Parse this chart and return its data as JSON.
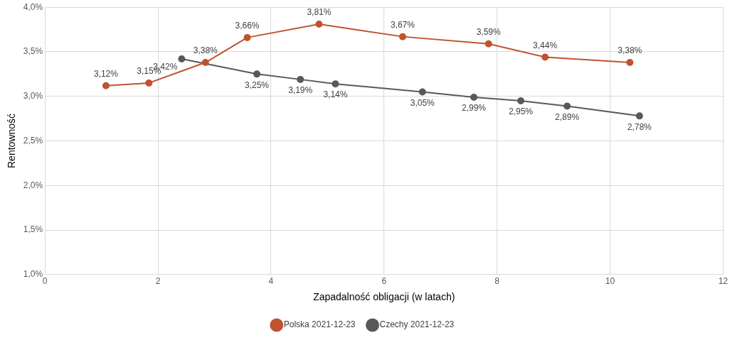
{
  "chart_data": {
    "type": "line",
    "xlabel": "Zapadalność obligacji (w latach)",
    "ylabel": "Rentowność",
    "xlim": [
      0,
      12
    ],
    "xticks": [
      0,
      2,
      4,
      6,
      8,
      10,
      12
    ],
    "ylim": [
      1,
      4
    ],
    "yticks": [
      {
        "value": 1,
        "label": "1,0%"
      },
      {
        "value": 1.5,
        "label": "1,5%"
      },
      {
        "value": 2,
        "label": "2,0%"
      },
      {
        "value": 2.5,
        "label": "2,5%"
      },
      {
        "value": 3,
        "label": "3,0%"
      },
      {
        "value": 3.5,
        "label": "3,5%"
      },
      {
        "value": 4,
        "label": "4,0%"
      }
    ],
    "grid": true,
    "legend": "bottom",
    "marker": "circle",
    "line_style": "solid",
    "series": [
      {
        "name": "Polska 2021-12-23",
        "color": "#c0532f",
        "x": [
          1.08,
          1.84,
          2.84,
          3.58,
          4.85,
          6.33,
          7.85,
          8.85,
          10.35
        ],
        "values": [
          3.12,
          3.15,
          3.38,
          3.66,
          3.81,
          3.67,
          3.59,
          3.44,
          3.38
        ],
        "value_labels": [
          "3,12%",
          "3,15%",
          "3,38%",
          "3,66%",
          "3,81%",
          "3,67%",
          "3,59%",
          "3,44%",
          "3,38%"
        ]
      },
      {
        "name": "Czechy 2021-12-23",
        "color": "#595959",
        "x": [
          2.42,
          3.75,
          4.52,
          5.14,
          6.68,
          7.59,
          8.42,
          9.24,
          10.52
        ],
        "values": [
          3.42,
          3.25,
          3.19,
          3.14,
          3.05,
          2.99,
          2.95,
          2.89,
          2.78
        ],
        "value_labels": [
          "3,42%",
          "3,25%",
          "3,19%",
          "3,14%",
          "3,05%",
          "2,99%",
          "2,95%",
          "2,89%",
          "2,78%"
        ]
      }
    ]
  }
}
